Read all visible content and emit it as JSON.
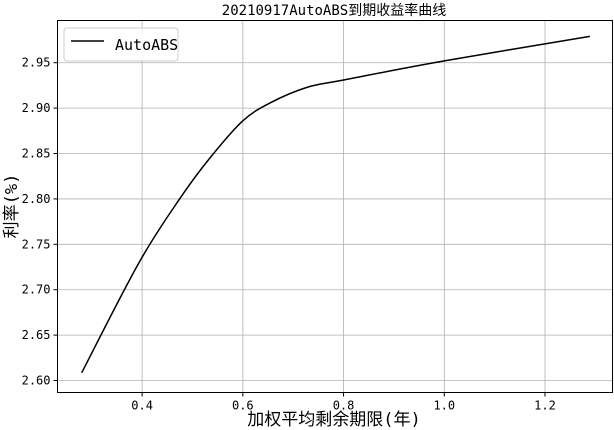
{
  "chart_data": {
    "type": "line",
    "title": "20210917AutoABS到期收益率曲线",
    "xlabel": "加权平均剩余期限(年)",
    "ylabel": "利率(%)",
    "xlim": [
      0.232,
      1.334
    ],
    "ylim": [
      2.5868,
      2.9965
    ],
    "xticks": [
      "0.4",
      "0.6",
      "0.8",
      "1.0",
      "1.2"
    ],
    "yticks": [
      "2.60",
      "2.65",
      "2.70",
      "2.75",
      "2.80",
      "2.85",
      "2.90",
      "2.95"
    ],
    "grid": true,
    "legend_position": "top-left",
    "series": [
      {
        "name": "AutoABS",
        "color": "#000000",
        "x": [
          0.28,
          0.394,
          0.477,
          0.536,
          0.6,
          0.655,
          0.728,
          0.8,
          1.0,
          1.289
        ],
        "y": [
          2.6085,
          2.73,
          2.802,
          2.846,
          2.886,
          2.906,
          2.923,
          2.931,
          2.952,
          2.979
        ]
      }
    ]
  }
}
